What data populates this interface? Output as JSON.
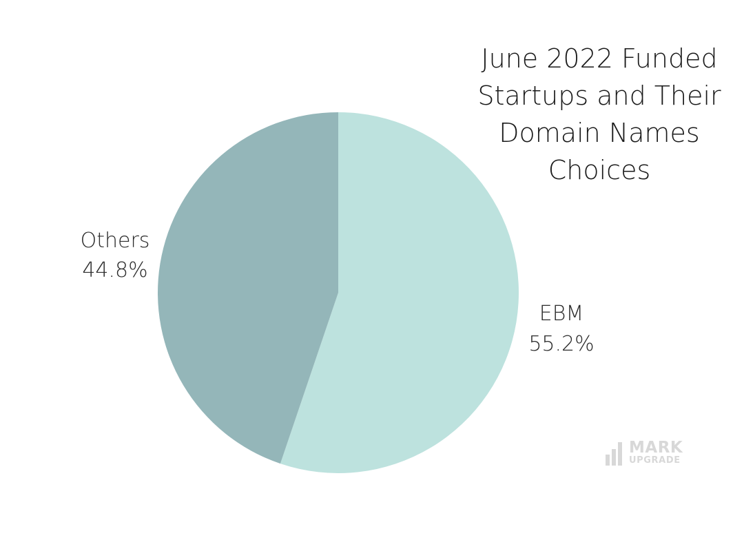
{
  "chart_data": {
    "type": "pie",
    "title": "June 2022 Funded Startups and Their Domain Names Choices",
    "slices": [
      {
        "label": "EBM",
        "value": 55.2,
        "display": "55.2%",
        "color": "#bde2de"
      },
      {
        "label": "Others",
        "value": 44.8,
        "display": "44.8%",
        "color": "#94b6b9"
      }
    ],
    "start_angle": "12 o'clock",
    "direction": "clockwise",
    "legend": "none"
  },
  "title_lines": [
    "June 2022 Funded",
    "Startups and Their",
    "Domain Names",
    "Choices"
  ],
  "logo": {
    "line1": "MARK",
    "line2": "UPGRADE",
    "icon": "bar-chart-icon",
    "color": "#d8d8d8"
  }
}
